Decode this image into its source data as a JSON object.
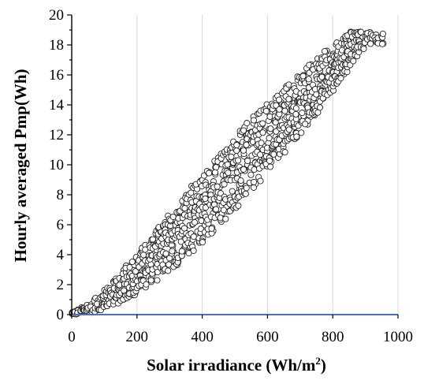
{
  "chart_data": {
    "type": "scatter",
    "title": "",
    "xlabel": "Solar irradiance (Wh/m",
    "xlabel_superscript": "2",
    "xlabel_suffix": ")",
    "ylabel": "Hourly averaged Pmp(Wh)",
    "xlim": [
      0,
      1000
    ],
    "ylim": [
      0,
      20
    ],
    "xticks": [
      0,
      200,
      400,
      600,
      800,
      1000
    ],
    "yticks": [
      0,
      2,
      4,
      6,
      8,
      10,
      12,
      14,
      16,
      18,
      20
    ],
    "xtick_labels": [
      "0",
      "200",
      "400",
      "600",
      "800",
      "1000"
    ],
    "ytick_labels": [
      "0",
      "2",
      "4",
      "6",
      "8",
      "10",
      "12",
      "14",
      "16",
      "18",
      "20"
    ],
    "grid": "vertical",
    "legend": "none",
    "marker": "open-circle",
    "colors": {
      "marker_edge": "#222222",
      "marker_fill": "#ffffff",
      "baseline": "#4472c4",
      "grid": "#d9d9d9"
    },
    "series": [
      {
        "x": [
          0,
          10,
          20,
          30,
          40,
          50,
          60,
          70,
          80,
          90,
          100,
          110,
          120,
          130,
          140,
          150,
          160,
          170,
          180,
          190,
          200,
          210,
          220,
          230,
          240,
          250,
          260,
          270,
          280,
          290,
          300,
          310,
          320,
          330,
          340,
          350,
          360,
          370,
          380,
          390,
          400,
          410,
          420,
          430,
          440,
          450,
          460,
          470,
          480,
          490,
          500,
          510,
          520,
          530,
          540,
          550,
          560,
          570,
          580,
          590,
          600,
          610,
          620,
          630,
          640,
          650,
          660,
          670,
          680,
          690,
          700,
          710,
          720,
          730,
          740,
          750,
          760,
          770,
          780,
          790,
          800,
          810,
          820,
          830,
          840,
          850,
          860,
          870,
          880,
          890,
          900,
          910,
          920,
          930,
          940,
          950
        ],
        "y_low": [
          0.0,
          0.0,
          0.0,
          0.02,
          0.05,
          0.09,
          0.13,
          0.18,
          0.23,
          0.3,
          0.37,
          0.44,
          0.53,
          0.62,
          0.71,
          0.81,
          0.92,
          1.03,
          1.15,
          1.27,
          1.4,
          1.53,
          1.67,
          1.81,
          1.96,
          2.11,
          2.26,
          2.42,
          2.58,
          2.75,
          2.92,
          3.09,
          3.27,
          3.45,
          3.63,
          3.82,
          4.01,
          4.2,
          4.4,
          4.6,
          4.8,
          5.0,
          5.21,
          5.42,
          5.63,
          5.85,
          6.07,
          6.29,
          6.51,
          6.74,
          6.97,
          7.2,
          7.44,
          7.67,
          7.91,
          8.15,
          8.4,
          8.65,
          8.9,
          9.15,
          9.4,
          9.66,
          9.92,
          10.18,
          10.44,
          10.71,
          10.97,
          11.24,
          11.52,
          11.79,
          12.07,
          12.35,
          12.63,
          12.91,
          13.2,
          13.49,
          13.78,
          14.07,
          14.36,
          14.66,
          14.96,
          15.26,
          15.56,
          15.86,
          16.17,
          16.48,
          16.79,
          17.1,
          17.41,
          17.73,
          18.04,
          18.0,
          18.0,
          18.0,
          18.0,
          18.0
        ],
        "y_high": [
          0.15,
          0.25,
          0.35,
          0.48,
          0.62,
          0.77,
          0.94,
          1.11,
          1.29,
          1.48,
          1.68,
          1.89,
          2.11,
          2.33,
          2.56,
          2.8,
          3.04,
          3.28,
          3.53,
          3.78,
          4.04,
          4.3,
          4.56,
          4.82,
          5.09,
          5.36,
          5.63,
          5.9,
          6.17,
          6.44,
          6.71,
          6.98,
          7.25,
          7.52,
          7.79,
          8.06,
          8.33,
          8.6,
          8.86,
          9.12,
          9.38,
          9.64,
          9.9,
          10.15,
          10.4,
          10.65,
          10.9,
          11.14,
          11.38,
          11.62,
          11.86,
          12.1,
          12.33,
          12.56,
          12.79,
          13.02,
          13.24,
          13.46,
          13.68,
          13.9,
          14.12,
          14.33,
          14.54,
          14.75,
          14.96,
          15.17,
          15.37,
          15.57,
          15.77,
          15.97,
          16.17,
          16.36,
          16.55,
          16.74,
          16.93,
          17.12,
          17.3,
          17.48,
          17.66,
          17.84,
          18.02,
          18.2,
          18.37,
          18.54,
          18.71,
          18.88,
          18.9,
          18.9,
          18.9,
          18.9,
          18.9,
          18.9,
          18.9,
          18.9,
          18.9,
          18.9
        ]
      }
    ]
  }
}
